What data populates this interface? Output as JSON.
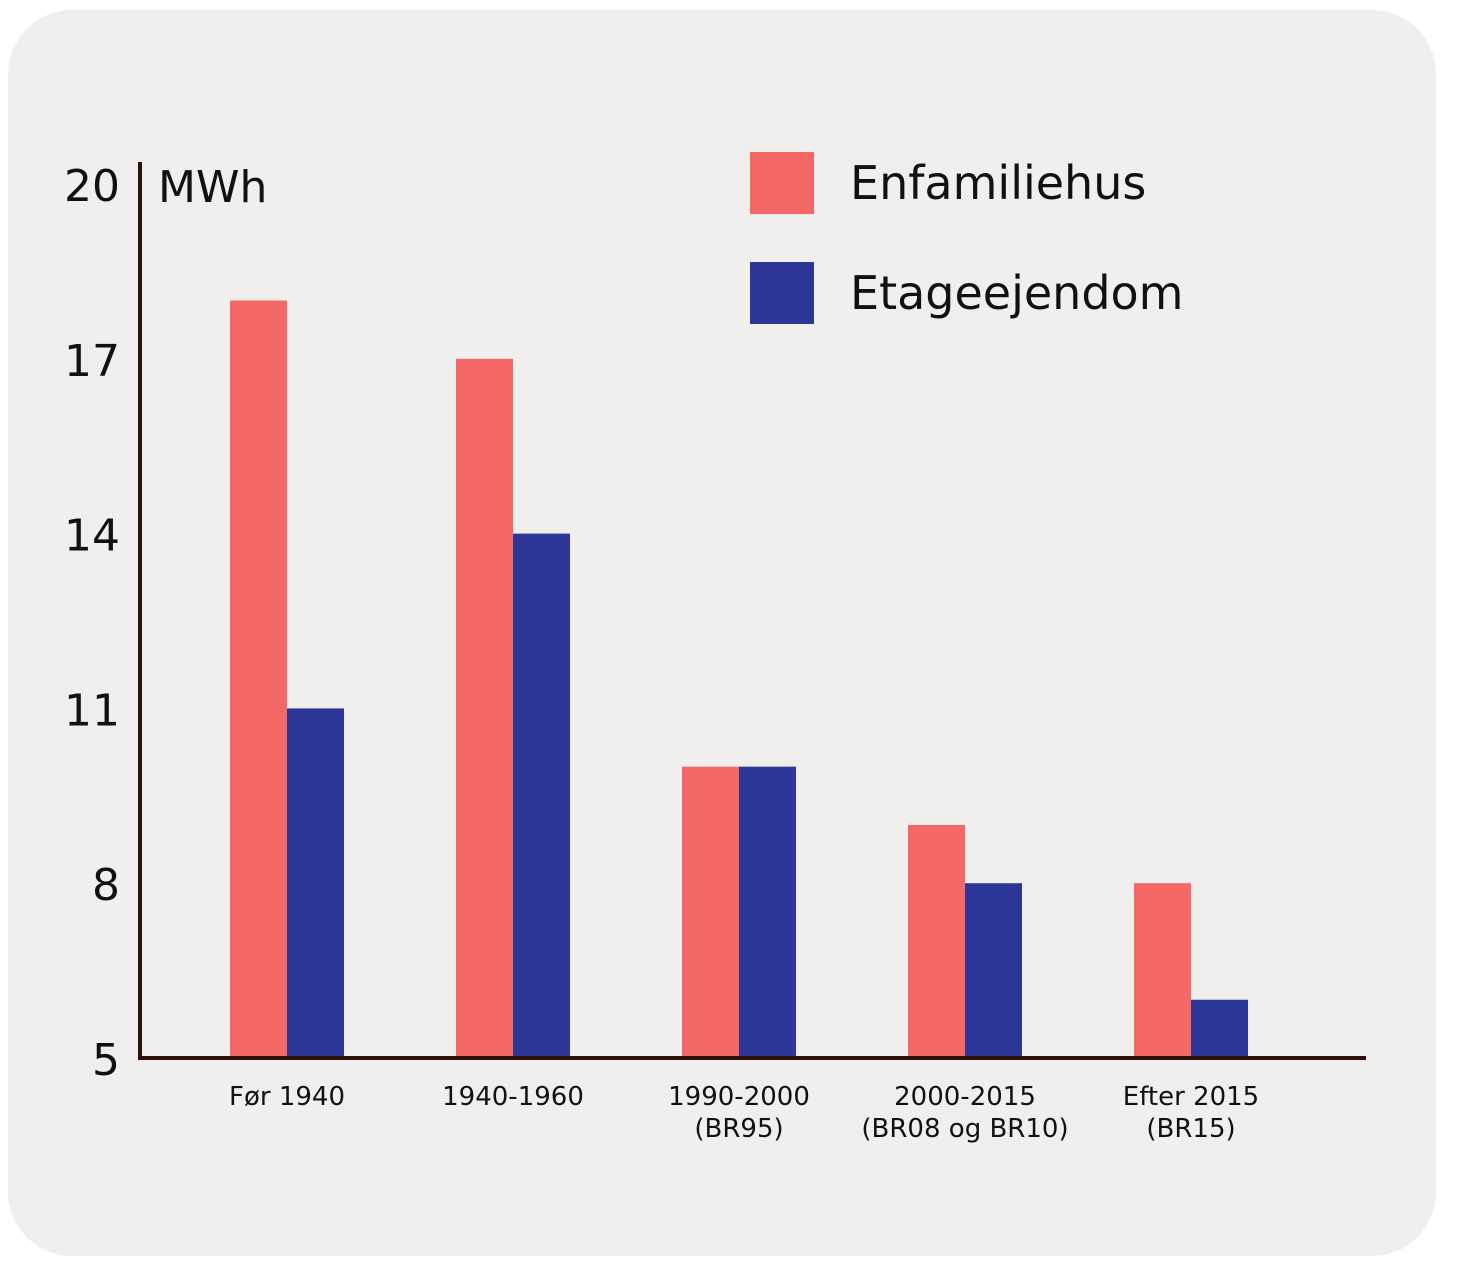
{
  "chart_data": {
    "type": "bar",
    "title": "",
    "xlabel": "",
    "ylabel": "MWh",
    "ylim": [
      5,
      20
    ],
    "yticks": [
      "20",
      "17",
      "14",
      "11",
      "8",
      "5"
    ],
    "categories": [
      [
        "Før 1940"
      ],
      [
        "1940-1960"
      ],
      [
        "1990-2000",
        "(BR95)"
      ],
      [
        "2000-2015",
        "(BR08 og BR10)"
      ],
      [
        "Efter 2015",
        "(BR15)"
      ]
    ],
    "series": [
      {
        "name": "Enfamiliehus",
        "color": "#f46868",
        "values": [
          18,
          17,
          10,
          9,
          8
        ]
      },
      {
        "name": "Etageejendom",
        "color": "#2c3798",
        "values": [
          11,
          14,
          10,
          8,
          6
        ]
      }
    ],
    "legend": "top-right",
    "grid": false
  }
}
